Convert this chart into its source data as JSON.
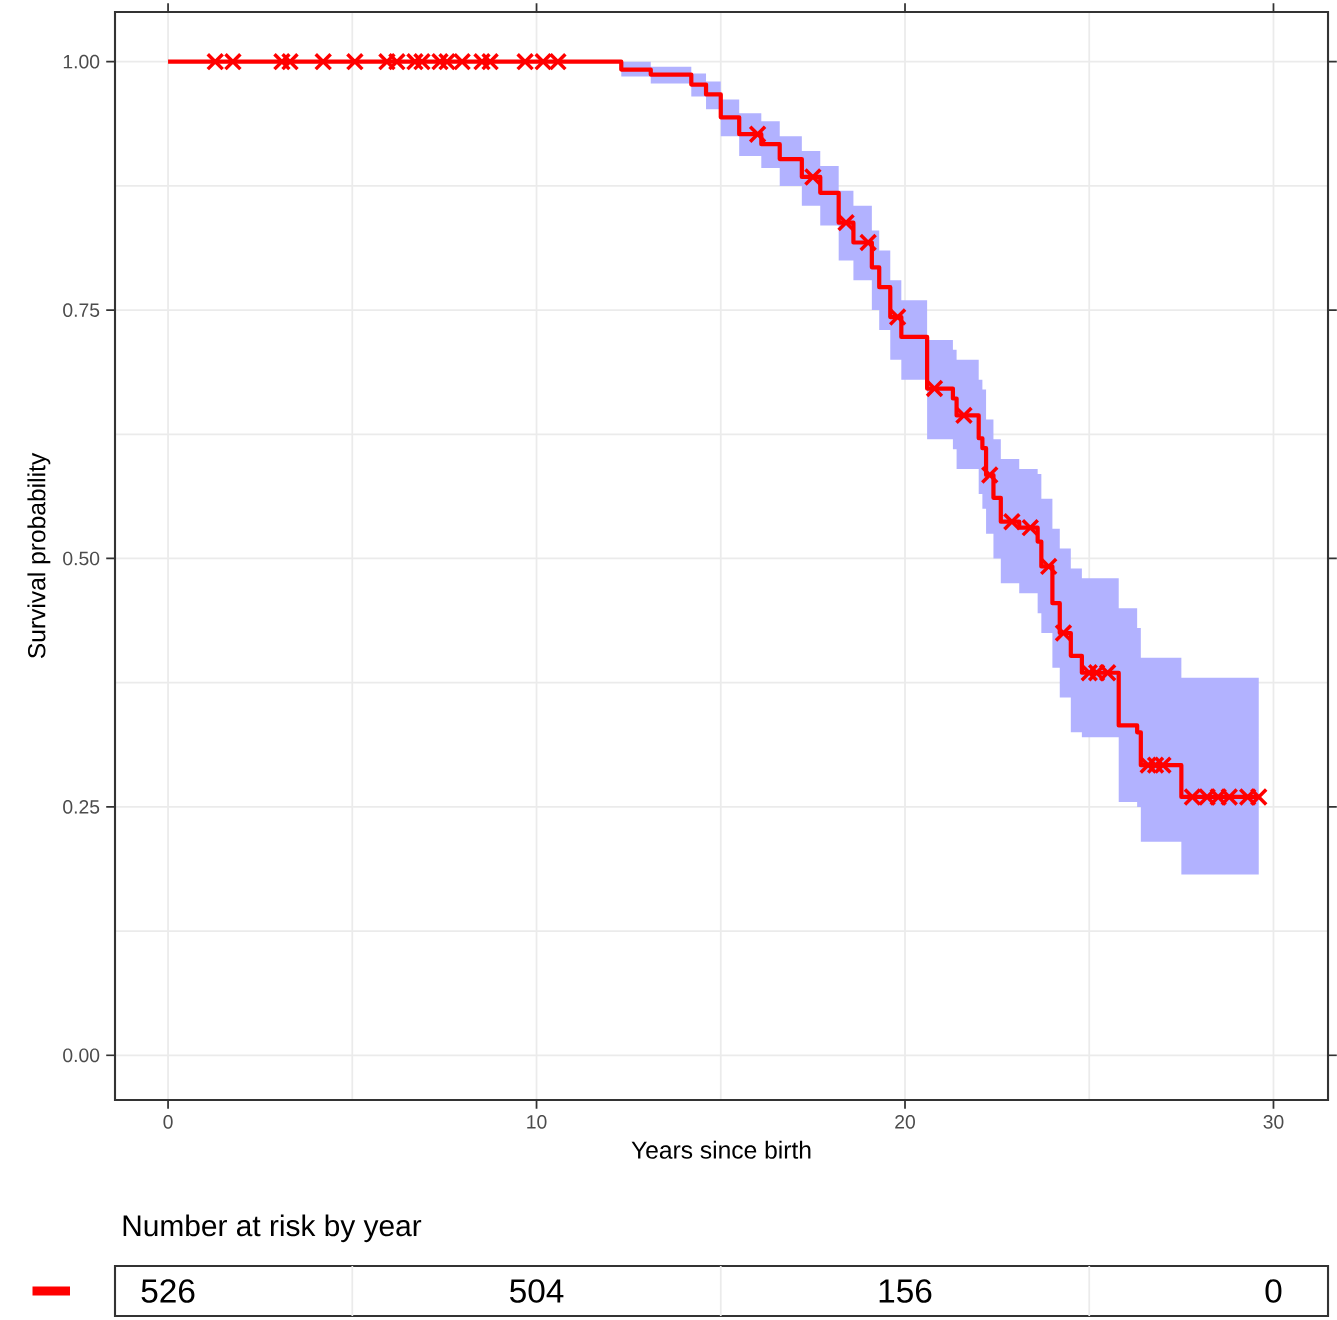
{
  "chart_data": [
    {
      "type": "step",
      "xlabel": "Years since birth",
      "ylabel": "Survival probability",
      "xlim": [
        -1.44,
        31.48
      ],
      "ylim": [
        -0.045,
        1.05
      ],
      "xticks": [
        0,
        10,
        20,
        30
      ],
      "yticks": [
        {
          "value": 0,
          "label": "0.00"
        },
        {
          "value": 0.25,
          "label": "0.25"
        },
        {
          "value": 0.5,
          "label": "0.50"
        },
        {
          "value": 0.75,
          "label": "0.75"
        },
        {
          "value": 1,
          "label": "1.00"
        }
      ],
      "grid": true,
      "series": [
        {
          "type": "step",
          "color": "#ff0000",
          "x": [
            0,
            10.6,
            12.3,
            13.1,
            14.2,
            14.6,
            15.0,
            15.5,
            16.1,
            16.6,
            17.2,
            17.7,
            18.2,
            18.6,
            19.1,
            19.3,
            19.6,
            19.9,
            20.6,
            21.3,
            21.4,
            22.0,
            22.1,
            22.2,
            22.4,
            22.6,
            23.1,
            23.6,
            23.7,
            24.0,
            24.2,
            24.5,
            24.8,
            25.8,
            26.3,
            26.4,
            27.5,
            29.6
          ],
          "values": [
            1.0,
            1.0,
            0.992,
            0.987,
            0.977,
            0.967,
            0.944,
            0.927,
            0.917,
            0.902,
            0.884,
            0.868,
            0.838,
            0.818,
            0.793,
            0.773,
            0.743,
            0.723,
            0.671,
            0.661,
            0.644,
            0.621,
            0.611,
            0.584,
            0.561,
            0.537,
            0.531,
            0.517,
            0.492,
            0.455,
            0.425,
            0.402,
            0.385,
            0.332,
            0.325,
            0.292,
            0.26,
            0.26
          ],
          "lower": [
            1.0,
            1.0,
            0.985,
            0.978,
            0.965,
            0.952,
            0.925,
            0.905,
            0.893,
            0.875,
            0.855,
            0.835,
            0.8,
            0.78,
            0.75,
            0.73,
            0.7,
            0.68,
            0.62,
            0.61,
            0.59,
            0.565,
            0.55,
            0.525,
            0.5,
            0.475,
            0.465,
            0.445,
            0.425,
            0.39,
            0.36,
            0.325,
            0.32,
            0.255,
            0.25,
            0.215,
            0.182,
            0.182
          ],
          "upper": [
            1.0,
            1.0,
            1.0,
            0.995,
            0.988,
            0.98,
            0.962,
            0.948,
            0.94,
            0.925,
            0.91,
            0.895,
            0.87,
            0.855,
            0.83,
            0.81,
            0.78,
            0.76,
            0.72,
            0.71,
            0.7,
            0.68,
            0.67,
            0.64,
            0.62,
            0.6,
            0.59,
            0.585,
            0.56,
            0.53,
            0.51,
            0.49,
            0.48,
            0.45,
            0.43,
            0.4,
            0.38,
            0.38
          ]
        },
        {
          "type": "scatter",
          "marker": "cross",
          "color": "#ff0000",
          "x": [
            1.28,
            1.76,
            3.09,
            3.31,
            4.21,
            5.07,
            5.94,
            6.21,
            6.7,
            6.89,
            7.38,
            7.57,
            7.98,
            8.52,
            8.74,
            9.69,
            10.18,
            10.58,
            16.0,
            17.5,
            18.4,
            19.0,
            19.8,
            20.8,
            21.6,
            22.3,
            22.9,
            23.4,
            23.9,
            24.3,
            25.0,
            25.2,
            25.5,
            26.6,
            26.8,
            27.0,
            27.8,
            28.2,
            28.5,
            28.8,
            29.3,
            29.6
          ],
          "values": [
            1.0,
            1.0,
            1.0,
            1.0,
            1.0,
            1.0,
            1.0,
            1.0,
            1.0,
            1.0,
            1.0,
            1.0,
            1.0,
            1.0,
            1.0,
            1.0,
            1.0,
            1.0,
            0.927,
            0.884,
            0.838,
            0.818,
            0.743,
            0.671,
            0.644,
            0.584,
            0.537,
            0.531,
            0.492,
            0.425,
            0.385,
            0.385,
            0.385,
            0.292,
            0.292,
            0.292,
            0.26,
            0.26,
            0.26,
            0.26,
            0.26,
            0.26
          ]
        }
      ]
    },
    {
      "type": "other",
      "title": "Number at risk by year",
      "categories": [
        null,
        null,
        null,
        null
      ],
      "values": [
        526,
        504,
        156,
        0
      ],
      "data_labels": true,
      "color": "#ff0000"
    }
  ]
}
